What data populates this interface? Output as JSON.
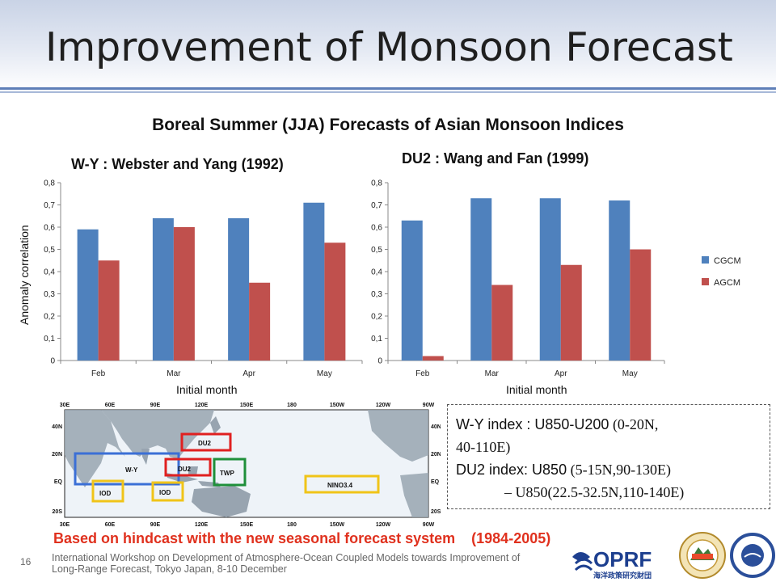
{
  "slide": {
    "title": "Improvement of Monsoon Forecast",
    "subtitle": "Boreal Summer (JJA) Forecasts of Asian Monsoon Indices",
    "hindcast": "Based on hindcast with the new seasonal forecast system    (1984-2005)",
    "page_number": "16",
    "footer_line1": "International Workshop on Development of Atmosphere-Ocean Coupled Models towards Improvement of",
    "footer_line2": "Long-Range Forecast, Tokyo Japan, 8-10 December"
  },
  "chart_data": [
    {
      "type": "bar",
      "title": "W-Y : Webster and Yang (1992)",
      "xlabel": "Initial month",
      "ylabel": "Anomaly correlation",
      "categories": [
        "Feb",
        "Mar",
        "Apr",
        "May"
      ],
      "series": [
        {
          "name": "CGCM",
          "values": [
            0.59,
            0.64,
            0.64,
            0.71
          ],
          "color": "#4f81bd"
        },
        {
          "name": "AGCM",
          "values": [
            0.45,
            0.6,
            0.35,
            0.53
          ],
          "color": "#c0504d"
        }
      ],
      "ylim": [
        0,
        0.8
      ],
      "yticks": [
        "0",
        "0,1",
        "0,2",
        "0,3",
        "0,4",
        "0,5",
        "0,6",
        "0,7",
        "0,8"
      ],
      "grid": false,
      "legend": "none"
    },
    {
      "type": "bar",
      "title": "DU2 : Wang and Fan (1999)",
      "xlabel": "Initial month",
      "ylabel": "",
      "categories": [
        "Feb",
        "Mar",
        "Apr",
        "May"
      ],
      "series": [
        {
          "name": "CGCM",
          "values": [
            0.63,
            0.73,
            0.73,
            0.72
          ],
          "color": "#4f81bd"
        },
        {
          "name": "AGCM",
          "values": [
            0.02,
            0.34,
            0.43,
            0.5
          ],
          "color": "#c0504d"
        }
      ],
      "ylim": [
        0,
        0.8
      ],
      "yticks": [
        "0",
        "0,1",
        "0,2",
        "0,3",
        "0,4",
        "0,5",
        "0,6",
        "0,7",
        "0,8"
      ],
      "grid": false,
      "legend": "right"
    }
  ],
  "map": {
    "lon_labels": [
      "30E",
      "60E",
      "90E",
      "120E",
      "150E",
      "180",
      "150W",
      "120W",
      "90W"
    ],
    "lat_labels": [
      "40N",
      "20N",
      "EQ",
      "20S"
    ],
    "regions": [
      {
        "label": "W-Y",
        "color": "#3b6fd6"
      },
      {
        "label": "DU2",
        "color": "#e02020"
      },
      {
        "label": "DU2",
        "color": "#e02020"
      },
      {
        "label": "IOD",
        "color": "#f0c419"
      },
      {
        "label": "IOD",
        "color": "#f0c419"
      },
      {
        "label": "TWP",
        "color": "#1f8f3a"
      },
      {
        "label": "NINO3.4",
        "color": "#f0c419"
      }
    ]
  },
  "indices": {
    "wy_a": "W-Y index : U850-U200",
    "wy_b": " (0-20N,",
    "wy_c": "40-110E)",
    "du2_a": "DU2 index: U850",
    "du2_b": " (5-15N,90-130E)",
    "du2_c": "– U850(22.5-32.5N,110-140E)"
  },
  "logos": {
    "oprf": "OPRF",
    "oprf_sub": "海洋政策研究財団"
  }
}
